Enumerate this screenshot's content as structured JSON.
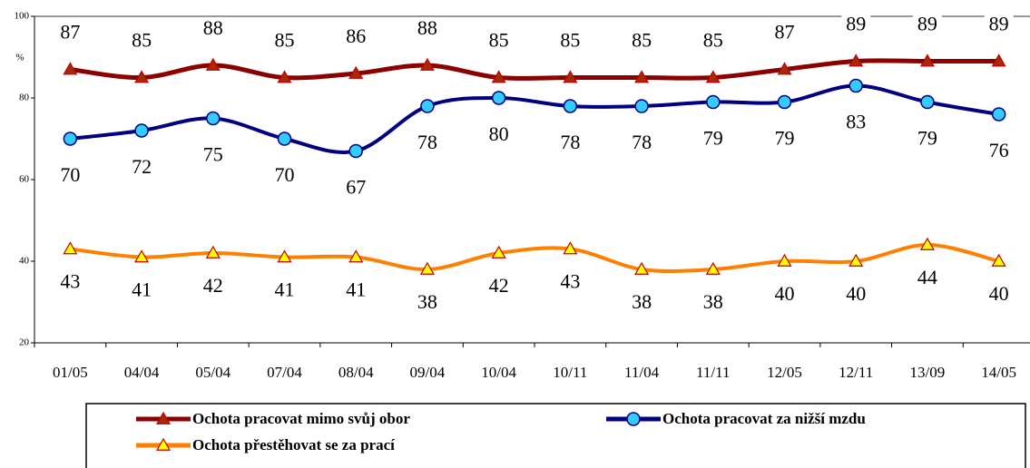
{
  "chart_data": {
    "type": "line",
    "y_label": "%",
    "categories": [
      "01/05",
      "04/04",
      "05/04",
      "07/04",
      "08/04",
      "09/04",
      "10/04",
      "10/11",
      "11/04",
      "11/11",
      "12/05",
      "12/11",
      "13/09",
      "14/05"
    ],
    "series": [
      {
        "name": "Ochota pracovat mimo svůj obor",
        "color": "#8b0000",
        "marker_color": "#a52a0a",
        "marker": "triangle",
        "label_side": "above",
        "values": [
          87,
          85,
          88,
          85,
          86,
          88,
          85,
          85,
          85,
          85,
          87,
          89,
          89,
          89
        ]
      },
      {
        "name": "Ochota pracovat za nižší mzdu",
        "color": "#000080",
        "marker_color": "#33ccff",
        "marker": "circle",
        "label_side": "below",
        "values": [
          70,
          72,
          75,
          70,
          67,
          78,
          80,
          78,
          78,
          79,
          79,
          83,
          79,
          76
        ]
      },
      {
        "name": "Ochota přestěhovat se za prací",
        "color": "#ff8000",
        "marker_color": "#ffff00",
        "marker": "triangle",
        "label_side": "below",
        "values": [
          43,
          41,
          42,
          41,
          41,
          38,
          42,
          43,
          38,
          38,
          40,
          40,
          44,
          40
        ]
      }
    ],
    "ylim": [
      20,
      100
    ],
    "yticks": [
      20,
      40,
      60,
      80,
      100
    ]
  }
}
